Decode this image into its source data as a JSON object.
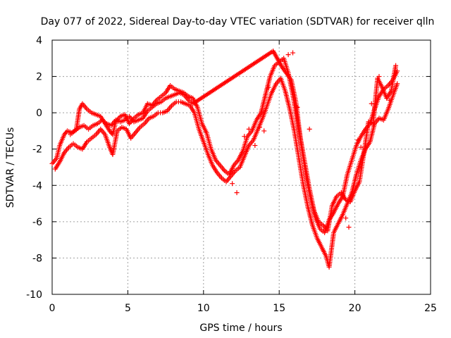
{
  "chart_data": {
    "type": "scatter",
    "title": "Day 077 of 2022, Sidereal Day-to-day VTEC variation (SDTVAR) for receiver qlln",
    "xlabel": "GPS time / hours",
    "ylabel": "SDTVAR / TECUs",
    "xlim": [
      0,
      25
    ],
    "ylim": [
      -10,
      4
    ],
    "xticks": [
      "0",
      "5",
      "10",
      "15",
      "20",
      "25"
    ],
    "yticks": [
      "4",
      "2",
      "0",
      "-2",
      "-4",
      "-6",
      "-8",
      "-10"
    ],
    "grid": true,
    "marker": "+",
    "series": [
      {
        "name": "track-upper",
        "color": "#ff0000",
        "points": [
          [
            0.0,
            -2.8
          ],
          [
            0.3,
            -2.5
          ],
          [
            0.5,
            -1.8
          ],
          [
            0.8,
            -1.2
          ],
          [
            1.0,
            -1.0
          ],
          [
            1.3,
            -1.1
          ],
          [
            1.6,
            -0.9
          ],
          [
            1.8,
            0.2
          ],
          [
            2.0,
            0.5
          ],
          [
            2.3,
            0.2
          ],
          [
            2.6,
            0.0
          ],
          [
            2.9,
            -0.1
          ],
          [
            3.2,
            -0.2
          ],
          [
            3.5,
            -0.6
          ],
          [
            3.8,
            -1.0
          ],
          [
            4.0,
            -1.2
          ],
          [
            4.2,
            -0.5
          ],
          [
            4.5,
            -0.2
          ],
          [
            4.8,
            -0.1
          ],
          [
            5.1,
            -0.6
          ],
          [
            5.4,
            -0.3
          ],
          [
            5.7,
            -0.1
          ],
          [
            6.0,
            0.0
          ],
          [
            6.3,
            0.5
          ],
          [
            6.6,
            0.4
          ],
          [
            6.9,
            0.7
          ],
          [
            7.2,
            0.9
          ],
          [
            7.5,
            1.1
          ],
          [
            7.8,
            1.5
          ],
          [
            8.1,
            1.3
          ],
          [
            8.4,
            1.2
          ],
          [
            8.7,
            1.1
          ],
          [
            9.0,
            0.9
          ],
          [
            9.3,
            0.8
          ],
          [
            9.6,
            0.3
          ],
          [
            9.9,
            -0.6
          ],
          [
            10.2,
            -1.1
          ],
          [
            10.5,
            -2.0
          ],
          [
            10.8,
            -2.6
          ],
          [
            11.1,
            -2.9
          ],
          [
            11.4,
            -3.2
          ],
          [
            11.7,
            -3.4
          ],
          [
            12.0,
            -2.9
          ],
          [
            12.3,
            -2.6
          ],
          [
            12.6,
            -2.1
          ],
          [
            12.9,
            -1.3
          ],
          [
            13.2,
            -1.0
          ],
          [
            13.5,
            -0.4
          ],
          [
            13.8,
            0.0
          ],
          [
            14.1,
            1.0
          ],
          [
            14.4,
            2.0
          ],
          [
            14.7,
            2.6
          ],
          [
            15.0,
            2.8
          ],
          [
            15.3,
            3.0
          ],
          [
            15.6,
            2.2
          ],
          [
            15.9,
            1.0
          ],
          [
            16.2,
            -0.5
          ],
          [
            16.5,
            -2.0
          ],
          [
            16.8,
            -3.6
          ],
          [
            17.1,
            -4.8
          ],
          [
            17.4,
            -5.8
          ],
          [
            17.7,
            -6.4
          ],
          [
            18.0,
            -6.6
          ],
          [
            18.3,
            -5.9
          ],
          [
            18.6,
            -5.5
          ],
          [
            18.9,
            -5.0
          ],
          [
            19.2,
            -4.6
          ],
          [
            19.5,
            -3.4
          ],
          [
            19.8,
            -2.6
          ],
          [
            20.1,
            -1.8
          ],
          [
            20.4,
            -1.3
          ],
          [
            20.7,
            -0.9
          ],
          [
            21.0,
            -0.6
          ],
          [
            21.3,
            0.2
          ],
          [
            21.6,
            0.9
          ],
          [
            21.9,
            1.3
          ],
          [
            22.2,
            1.5
          ],
          [
            22.5,
            1.8
          ],
          [
            22.8,
            2.3
          ]
        ]
      },
      {
        "name": "track-lower",
        "color": "#ff0000",
        "points": [
          [
            0.2,
            -3.1
          ],
          [
            0.5,
            -2.7
          ],
          [
            0.8,
            -2.2
          ],
          [
            1.1,
            -1.9
          ],
          [
            1.4,
            -1.7
          ],
          [
            1.7,
            -1.9
          ],
          [
            2.0,
            -2.0
          ],
          [
            2.3,
            -1.6
          ],
          [
            2.6,
            -1.4
          ],
          [
            2.9,
            -1.2
          ],
          [
            3.2,
            -0.9
          ],
          [
            3.5,
            -1.2
          ],
          [
            3.8,
            -1.9
          ],
          [
            4.0,
            -2.3
          ],
          [
            4.3,
            -1.0
          ],
          [
            4.6,
            -0.8
          ],
          [
            4.9,
            -0.9
          ],
          [
            5.2,
            -1.4
          ],
          [
            5.5,
            -1.1
          ],
          [
            5.8,
            -0.8
          ],
          [
            6.1,
            -0.6
          ],
          [
            6.4,
            -0.3
          ],
          [
            6.7,
            -0.2
          ],
          [
            7.0,
            0.0
          ],
          [
            7.3,
            0.0
          ],
          [
            7.6,
            0.1
          ],
          [
            7.9,
            0.4
          ],
          [
            8.2,
            0.6
          ],
          [
            8.5,
            0.6
          ],
          [
            8.8,
            0.5
          ],
          [
            9.1,
            0.4
          ],
          [
            9.4,
            0.0
          ],
          [
            9.7,
            -0.9
          ],
          [
            10.0,
            -1.6
          ],
          [
            10.3,
            -2.3
          ],
          [
            10.6,
            -2.9
          ],
          [
            10.9,
            -3.3
          ],
          [
            11.2,
            -3.6
          ],
          [
            11.5,
            -3.8
          ],
          [
            11.8,
            -3.5
          ],
          [
            12.1,
            -3.2
          ],
          [
            12.4,
            -3.0
          ],
          [
            12.7,
            -2.4
          ],
          [
            13.0,
            -1.8
          ],
          [
            13.3,
            -1.5
          ],
          [
            13.6,
            -0.9
          ],
          [
            13.9,
            -0.3
          ],
          [
            14.2,
            0.4
          ],
          [
            14.5,
            1.1
          ],
          [
            14.8,
            1.6
          ],
          [
            15.1,
            1.9
          ],
          [
            15.4,
            1.2
          ],
          [
            15.7,
            0.2
          ],
          [
            16.0,
            -1.0
          ],
          [
            16.3,
            -2.5
          ],
          [
            16.6,
            -4.0
          ],
          [
            16.9,
            -5.2
          ],
          [
            17.2,
            -6.2
          ],
          [
            17.5,
            -6.9
          ],
          [
            17.8,
            -7.4
          ],
          [
            18.1,
            -7.9
          ],
          [
            18.3,
            -8.5
          ],
          [
            18.6,
            -6.6
          ],
          [
            18.9,
            -6.1
          ],
          [
            19.2,
            -5.6
          ],
          [
            19.5,
            -5.0
          ],
          [
            19.8,
            -4.4
          ],
          [
            20.1,
            -3.4
          ],
          [
            20.4,
            -2.6
          ],
          [
            20.7,
            -2.0
          ],
          [
            21.0,
            -1.6
          ],
          [
            21.3,
            -0.6
          ],
          [
            21.6,
            -0.3
          ],
          [
            21.9,
            -0.4
          ],
          [
            22.2,
            0.2
          ],
          [
            22.5,
            0.9
          ],
          [
            22.8,
            1.6
          ]
        ]
      },
      {
        "name": "track-middle",
        "color": "#ff0000",
        "points": [
          [
            1.2,
            -1.2
          ],
          [
            1.5,
            -1.0
          ],
          [
            1.8,
            -0.8
          ],
          [
            2.1,
            -0.7
          ],
          [
            2.4,
            -0.9
          ],
          [
            2.7,
            -0.7
          ],
          [
            3.0,
            -0.6
          ],
          [
            3.3,
            -0.4
          ],
          [
            3.6,
            -0.6
          ],
          [
            3.9,
            -0.7
          ],
          [
            4.2,
            -0.4
          ],
          [
            4.5,
            -0.5
          ],
          [
            4.8,
            -0.4
          ],
          [
            5.1,
            -0.2
          ],
          [
            5.4,
            -0.5
          ],
          [
            5.7,
            -0.4
          ],
          [
            6.0,
            -0.3
          ],
          [
            6.3,
            0.1
          ],
          [
            6.6,
            0.3
          ],
          [
            6.9,
            0.5
          ],
          [
            7.2,
            0.6
          ],
          [
            7.5,
            0.8
          ],
          [
            7.8,
            0.9
          ],
          [
            8.1,
            1.0
          ],
          [
            8.4,
            1.1
          ],
          [
            8.7,
            1.0
          ],
          [
            9.0,
            0.7
          ],
          [
            9.3,
            0.5
          ],
          [
            14.6,
            3.4
          ],
          [
            15.2,
            2.5
          ],
          [
            15.8,
            1.8
          ],
          [
            16.1,
            0.6
          ],
          [
            16.4,
            -1.4
          ],
          [
            16.7,
            -2.8
          ],
          [
            17.0,
            -4.2
          ],
          [
            17.3,
            -5.4
          ],
          [
            17.6,
            -6.0
          ],
          [
            17.9,
            -6.2
          ],
          [
            18.2,
            -6.5
          ],
          [
            18.5,
            -5.1
          ],
          [
            18.8,
            -4.6
          ],
          [
            19.1,
            -4.4
          ],
          [
            19.4,
            -4.8
          ],
          [
            19.7,
            -4.9
          ],
          [
            20.0,
            -4.3
          ],
          [
            20.3,
            -3.8
          ],
          [
            20.6,
            -2.2
          ],
          [
            20.9,
            -0.5
          ],
          [
            21.2,
            -0.6
          ],
          [
            21.5,
            1.9
          ],
          [
            21.8,
            1.4
          ],
          [
            22.1,
            0.8
          ],
          [
            22.4,
            1.2
          ],
          [
            22.7,
            2.6
          ]
        ]
      },
      {
        "name": "scattered-points",
        "color": "#ff0000",
        "points": [
          [
            14.0,
            -1.0
          ],
          [
            13.7,
            -0.8
          ],
          [
            13.4,
            -1.8
          ],
          [
            12.2,
            -4.4
          ],
          [
            11.9,
            -3.9
          ],
          [
            14.3,
            1.4
          ],
          [
            15.6,
            3.2
          ],
          [
            15.9,
            3.3
          ],
          [
            17.0,
            -0.9
          ],
          [
            16.2,
            0.3
          ],
          [
            19.6,
            -6.3
          ],
          [
            19.4,
            -5.8
          ],
          [
            20.2,
            -1.5
          ],
          [
            21.1,
            0.5
          ],
          [
            21.6,
            2.0
          ],
          [
            22.3,
            0.7
          ],
          [
            20.4,
            -1.9
          ],
          [
            12.7,
            -1.3
          ],
          [
            13.0,
            -0.9
          ]
        ]
      }
    ]
  }
}
